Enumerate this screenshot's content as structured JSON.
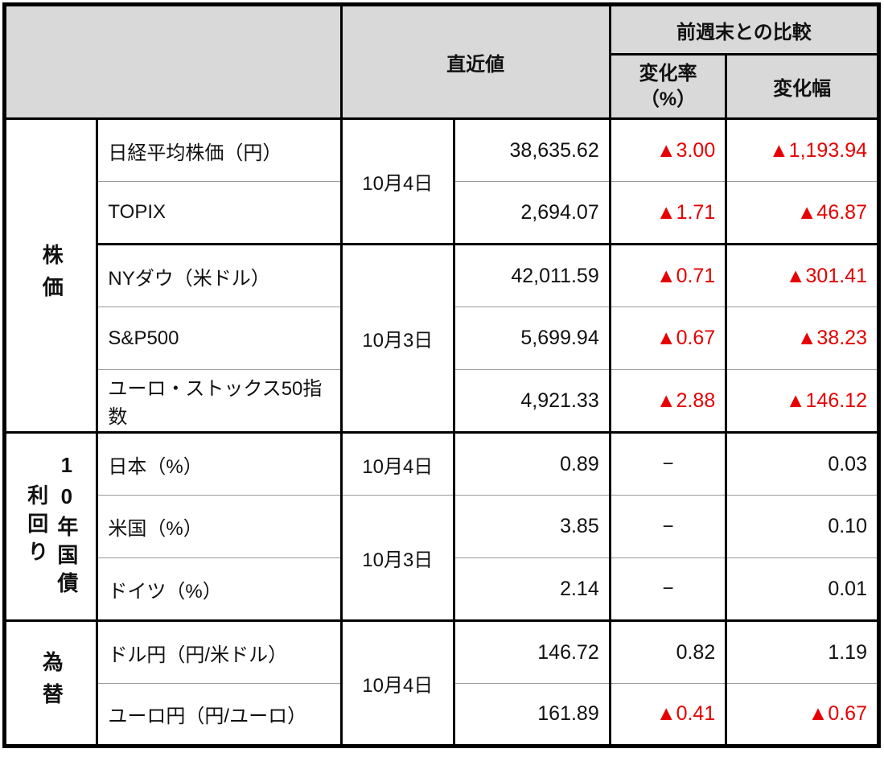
{
  "table": {
    "header": {
      "corner": "",
      "latest": "直近値",
      "comparison": "前週末との比較",
      "rate_line1": "変化率",
      "rate_line2": "（%）",
      "width_col": "変化幅"
    },
    "groups": [
      {
        "label": "株価"
      },
      {
        "label": "10年国債利回り",
        "label_left": "利回り",
        "label_right": "10年国債"
      },
      {
        "label": "為替"
      }
    ],
    "dates": [
      "10月4日",
      "10月3日",
      "10月4日",
      "10月3日",
      "10月4日"
    ],
    "rows": [
      {
        "name": "日経平均株価（円）",
        "value": "38,635.62",
        "rate": "▲3.00",
        "width": "▲1,193.94",
        "rate_negative": true,
        "width_negative": true
      },
      {
        "name": "TOPIX",
        "value": "2,694.07",
        "rate": "▲1.71",
        "width": "▲46.87",
        "rate_negative": true,
        "width_negative": true
      },
      {
        "name": "NYダウ（米ドル）",
        "value": "42,011.59",
        "rate": "▲0.71",
        "width": "▲301.41",
        "rate_negative": true,
        "width_negative": true
      },
      {
        "name": "S&P500",
        "value": "5,699.94",
        "rate": "▲0.67",
        "width": "▲38.23",
        "rate_negative": true,
        "width_negative": true
      },
      {
        "name": "ユーロ・ストックス50指数",
        "value": "4,921.33",
        "rate": "▲2.88",
        "width": "▲146.12",
        "rate_negative": true,
        "width_negative": true
      },
      {
        "name": "日本（%）",
        "value": "0.89",
        "rate": "−",
        "width": "0.03",
        "rate_negative": false,
        "width_negative": false
      },
      {
        "name": "米国（%）",
        "value": "3.85",
        "rate": "−",
        "width": "0.10",
        "rate_negative": false,
        "width_negative": false
      },
      {
        "name": "ドイツ（%）",
        "value": "2.14",
        "rate": "−",
        "width": "0.01",
        "rate_negative": false,
        "width_negative": false
      },
      {
        "name": "ドル円（円/米ドル）",
        "value": "146.72",
        "rate": "0.82",
        "width": "1.19",
        "rate_negative": false,
        "width_negative": false
      },
      {
        "name": "ユーロ円（円/ユーロ）",
        "value": "161.89",
        "rate": "▲0.41",
        "width": "▲0.67",
        "rate_negative": true,
        "width_negative": true
      }
    ],
    "colors": {
      "negative": "#e60000",
      "header_bg": "#d9d9d9",
      "divider": "#999999",
      "border": "#000000",
      "text": "#111111"
    }
  },
  "chart_data": {
    "type": "table",
    "title": "",
    "columns": [
      "",
      "",
      "直近値(日付)",
      "直近値",
      "変化率（%）",
      "変化幅"
    ],
    "rows": [
      [
        "株価",
        "日経平均株価（円）",
        "10月4日",
        "38,635.62",
        "▲3.00",
        "▲1,193.94"
      ],
      [
        "株価",
        "TOPIX",
        "10月4日",
        "2,694.07",
        "▲1.71",
        "▲46.87"
      ],
      [
        "株価",
        "NYダウ（米ドル）",
        "10月3日",
        "42,011.59",
        "▲0.71",
        "▲301.41"
      ],
      [
        "株価",
        "S&P500",
        "10月3日",
        "5,699.94",
        "▲0.67",
        "▲38.23"
      ],
      [
        "株価",
        "ユーロ・ストックス50指数",
        "10月3日",
        "4,921.33",
        "▲2.88",
        "▲146.12"
      ],
      [
        "10年国債利回り",
        "日本（%）",
        "10月4日",
        "0.89",
        "−",
        "0.03"
      ],
      [
        "10年国債利回り",
        "米国（%）",
        "10月3日",
        "3.85",
        "−",
        "0.10"
      ],
      [
        "10年国債利回り",
        "ドイツ（%）",
        "10月3日",
        "2.14",
        "−",
        "0.01"
      ],
      [
        "為替",
        "ドル円（円/米ドル）",
        "10月4日",
        "146.72",
        "0.82",
        "1.19"
      ],
      [
        "為替",
        "ユーロ円（円/ユーロ）",
        "10月4日",
        "161.89",
        "▲0.41",
        "▲0.67"
      ]
    ]
  }
}
